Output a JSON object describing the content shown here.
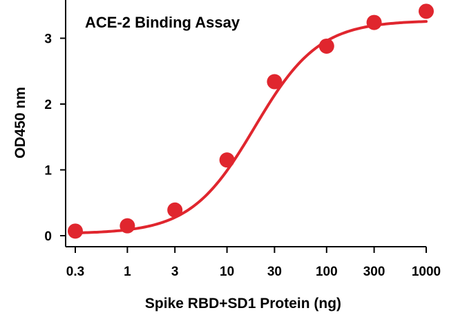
{
  "chart_data": {
    "type": "scatter",
    "title": "ACE-2 Binding Assay",
    "xlabel": "Spike RBD+SD1 Protein (ng)",
    "ylabel": "OD450 nm",
    "x_scale": "log",
    "x_ticks": [
      0.3,
      1,
      3,
      10,
      30,
      100,
      300,
      1000
    ],
    "x_tick_labels": [
      "0.3",
      "1",
      "3",
      "10",
      "30",
      "100",
      "300",
      "1000"
    ],
    "y_ticks": [
      0,
      1,
      2,
      3
    ],
    "y_tick_labels": [
      "0",
      "1",
      "2",
      "3"
    ],
    "xlim": [
      0.3,
      1000
    ],
    "ylim": [
      -0.1,
      3.5
    ],
    "grid": false,
    "color": "#e0262e",
    "series": [
      {
        "points": [
          {
            "x": 0.3,
            "y": 0.07
          },
          {
            "x": 1,
            "y": 0.15
          },
          {
            "x": 3,
            "y": 0.39
          },
          {
            "x": 10,
            "y": 1.15
          },
          {
            "x": 30,
            "y": 2.34
          },
          {
            "x": 100,
            "y": 2.88
          },
          {
            "x": 300,
            "y": 3.24
          },
          {
            "x": 1000,
            "y": 3.41
          }
        ],
        "fit_curve": {
          "model": "4PL",
          "bottom": 0.03,
          "top": 3.27,
          "ec50": 19,
          "hill": 1.35
        }
      }
    ]
  }
}
